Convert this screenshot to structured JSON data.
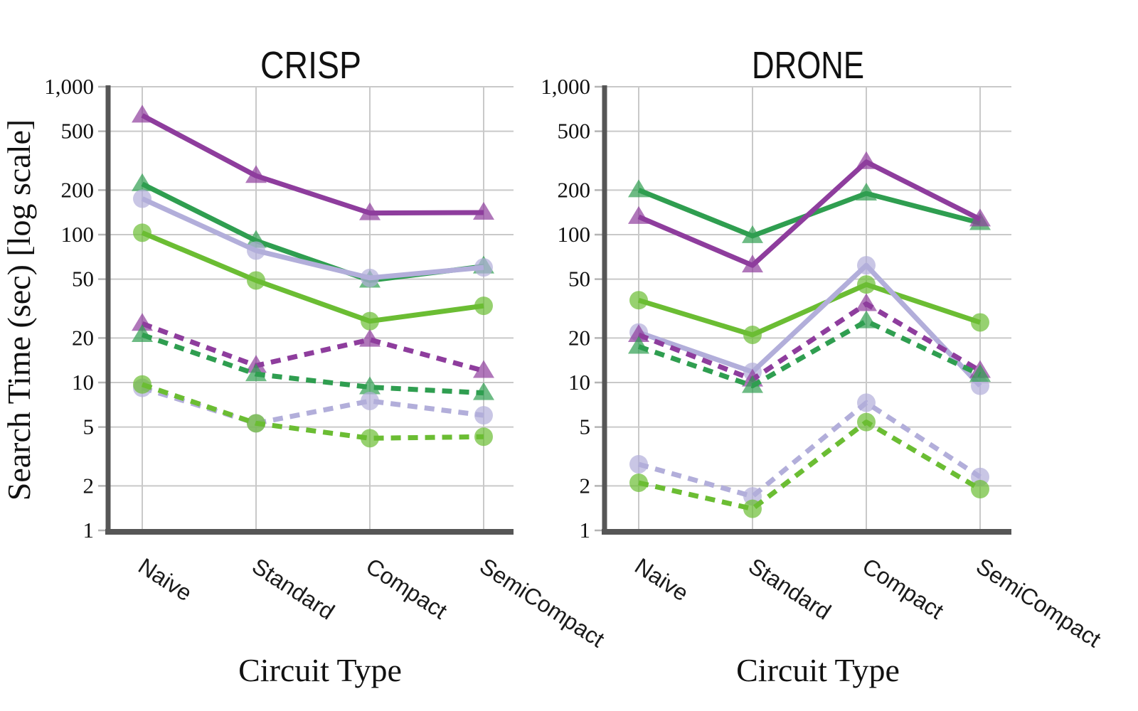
{
  "figure": {
    "ylabel": "Search Time (sec) [log scale]"
  },
  "chart_data": [
    {
      "type": "line",
      "title": "CRISP",
      "xlabel": "Circuit Type",
      "ylabel": "Search Time (sec) [log scale]",
      "y_scale": "log",
      "ylim": [
        1,
        1000
      ],
      "grid": true,
      "legend_position": "none",
      "categories": [
        "Naive",
        "Standard",
        "Compact",
        "SemiCompact"
      ],
      "y_ticks": [
        1000,
        500,
        200,
        100,
        50,
        20,
        10,
        5,
        2,
        1
      ],
      "y_tick_labels": [
        "1,000",
        "500",
        "200",
        "100",
        "50",
        "20",
        "10",
        "5",
        "2",
        "1"
      ],
      "series": [
        {
          "name": "solid-triangle-purple",
          "marker": "triangle",
          "line": "solid",
          "color": "#8E3D9D",
          "values": [
            640,
            250,
            140,
            141
          ]
        },
        {
          "name": "solid-triangle-green",
          "marker": "triangle",
          "line": "solid",
          "color": "#2F9E50",
          "values": [
            220,
            91,
            49,
            61
          ]
        },
        {
          "name": "solid-circle-lavender",
          "marker": "circle",
          "line": "solid",
          "color": "#B2AEDA",
          "values": [
            175,
            78,
            51,
            60
          ]
        },
        {
          "name": "solid-circle-lightgreen",
          "marker": "circle",
          "line": "solid",
          "color": "#6BBD33",
          "values": [
            103,
            49,
            26,
            33
          ]
        },
        {
          "name": "dashed-triangle-purple",
          "marker": "triangle",
          "line": "dashed",
          "color": "#8E3D9D",
          "values": [
            25,
            13,
            19.5,
            12
          ]
        },
        {
          "name": "dashed-triangle-green",
          "marker": "triangle",
          "line": "dashed",
          "color": "#2F9E50",
          "values": [
            21,
            11.4,
            9.3,
            8.5
          ]
        },
        {
          "name": "dashed-circle-lavender",
          "marker": "circle",
          "line": "dashed",
          "color": "#B2AEDA",
          "values": [
            9.2,
            5.3,
            7.5,
            6
          ]
        },
        {
          "name": "dashed-circle-lightgreen",
          "marker": "circle",
          "line": "dashed",
          "color": "#6BBD33",
          "values": [
            9.7,
            5.3,
            4.2,
            4.3
          ]
        }
      ]
    },
    {
      "type": "line",
      "title": "DRONE",
      "xlabel": "Circuit Type",
      "ylabel": "Search Time (sec) [log scale]",
      "y_scale": "log",
      "ylim": [
        1,
        1000
      ],
      "grid": true,
      "legend_position": "none",
      "categories": [
        "Naive",
        "Standard",
        "Compact",
        "SemiCompact"
      ],
      "y_ticks": [
        1000,
        500,
        200,
        100,
        50,
        20,
        10,
        5,
        2,
        1
      ],
      "y_tick_labels": [
        "1,000",
        "500",
        "200",
        "100",
        "50",
        "20",
        "10",
        "5",
        "2",
        "1"
      ],
      "series": [
        {
          "name": "solid-triangle-green",
          "marker": "triangle",
          "line": "solid",
          "color": "#2F9E50",
          "values": [
            200,
            98,
            190,
            120
          ]
        },
        {
          "name": "solid-triangle-purple",
          "marker": "triangle",
          "line": "solid",
          "color": "#8E3D9D",
          "values": [
            132,
            62,
            310,
            127
          ]
        },
        {
          "name": "solid-circle-lightgreen",
          "marker": "circle",
          "line": "solid",
          "color": "#6BBD33",
          "values": [
            36,
            21,
            46,
            25.5
          ]
        },
        {
          "name": "solid-circle-lavender",
          "marker": "circle",
          "line": "solid",
          "color": "#B2AEDA",
          "values": [
            21.8,
            11.8,
            62,
            9.5
          ]
        },
        {
          "name": "dashed-triangle-purple",
          "marker": "triangle",
          "line": "dashed",
          "color": "#8E3D9D",
          "values": [
            21,
            10.5,
            34,
            12
          ]
        },
        {
          "name": "dashed-triangle-green",
          "marker": "triangle",
          "line": "dashed",
          "color": "#2F9E50",
          "values": [
            17.5,
            9.5,
            26,
            11.3
          ]
        },
        {
          "name": "dashed-circle-lavender",
          "marker": "circle",
          "line": "dashed",
          "color": "#B2AEDA",
          "values": [
            2.8,
            1.7,
            7.3,
            2.3
          ]
        },
        {
          "name": "dashed-circle-lightgreen",
          "marker": "circle",
          "line": "dashed",
          "color": "#6BBD33",
          "values": [
            2.1,
            1.4,
            5.4,
            1.9
          ]
        }
      ]
    }
  ]
}
